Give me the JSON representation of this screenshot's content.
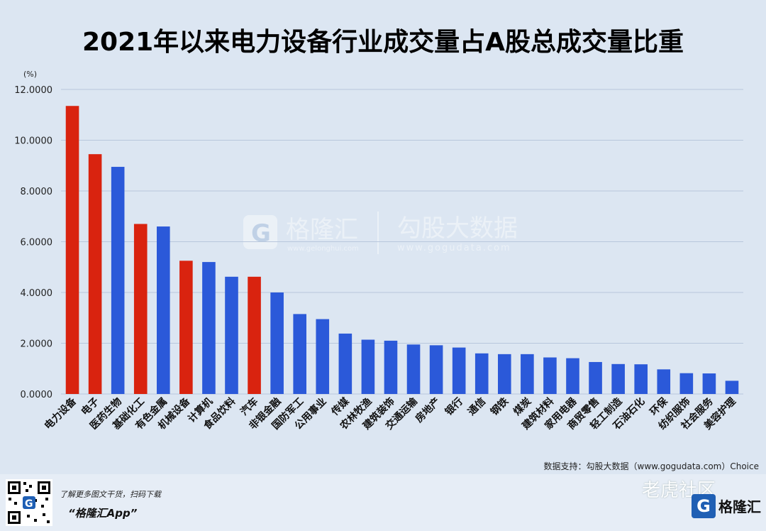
{
  "title": "2021年以来电力设备行业成交量占A股总成交量比重",
  "source": "数据支持：勾股大数据（www.gogudata.com）Choice",
  "watermark": {
    "brand": "格隆汇",
    "brand_url": "www.gelonghui.com",
    "data": "勾股大数据",
    "data_url": "www.gogudata.com"
  },
  "footer": {
    "tagline": "了解更多图文干货，扫码下载",
    "app": "“格隆汇App”",
    "right_watermark": "老虎社区",
    "brand": "格隆汇"
  },
  "colors": {
    "highlight": "#d9230f",
    "normal": "#2b59d9",
    "grid": "#b8c7dc",
    "background": "#dce6f2"
  },
  "chart_data": {
    "type": "bar",
    "title": "2021年以来电力设备行业成交量占A股总成交量比重",
    "ylabel": "(%)",
    "ylim": [
      0,
      12
    ],
    "yticks": [
      "0.0000",
      "2.0000",
      "4.0000",
      "6.0000",
      "8.0000",
      "10.0000",
      "12.0000"
    ],
    "grid": true,
    "categories": [
      "电力设备",
      "电子",
      "医药生物",
      "基础化工",
      "有色金属",
      "机械设备",
      "计算机",
      "食品饮料",
      "汽车",
      "非银金融",
      "国防军工",
      "公用事业",
      "传媒",
      "农林牧渔",
      "建筑装饰",
      "交通运输",
      "房地产",
      "银行",
      "通信",
      "钢铁",
      "煤炭",
      "建筑材料",
      "家用电器",
      "商贸零售",
      "轻工制造",
      "石油石化",
      "环保",
      "纺织服饰",
      "社会服务",
      "美容护理"
    ],
    "values": [
      11.35,
      9.45,
      8.95,
      6.7,
      6.6,
      5.25,
      5.2,
      4.62,
      4.62,
      4.0,
      3.15,
      2.95,
      2.38,
      2.14,
      2.1,
      1.95,
      1.92,
      1.83,
      1.6,
      1.57,
      1.57,
      1.44,
      1.41,
      1.26,
      1.18,
      1.17,
      0.97,
      0.82,
      0.81,
      0.52
    ],
    "highlight": [
      "red",
      "red",
      "blue",
      "red",
      "blue",
      "red",
      "blue",
      "blue",
      "red",
      "blue",
      "blue",
      "blue",
      "blue",
      "blue",
      "blue",
      "blue",
      "blue",
      "blue",
      "blue",
      "blue",
      "blue",
      "blue",
      "blue",
      "blue",
      "blue",
      "blue",
      "blue",
      "blue",
      "blue",
      "blue"
    ]
  }
}
